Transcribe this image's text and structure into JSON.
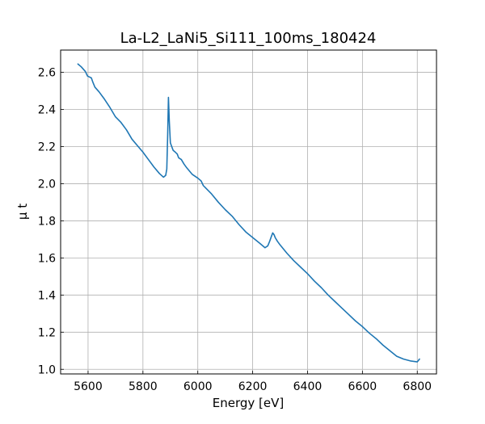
{
  "chart_data": {
    "type": "line",
    "title": "La-L2_LaNi5_Si111_100ms_180424",
    "xlabel": "Energy [eV]",
    "ylabel": "μ t",
    "xlim": [
      5500,
      6870
    ],
    "ylim": [
      0.975,
      2.72
    ],
    "grid": true,
    "legend": "none",
    "x_ticks": [
      5600,
      5800,
      6000,
      6200,
      6400,
      6600,
      6800
    ],
    "x_tick_labels": [
      "5600",
      "5800",
      "6000",
      "6200",
      "6400",
      "6600",
      "6800"
    ],
    "y_ticks": [
      1.0,
      1.2,
      1.4,
      1.6,
      1.8,
      2.0,
      2.2,
      2.4,
      2.6
    ],
    "y_tick_labels": [
      "1.0",
      "1.2",
      "1.4",
      "1.6",
      "1.8",
      "2.0",
      "2.2",
      "2.4",
      "2.6"
    ],
    "series": [
      {
        "color": "#1f77b4",
        "x": [
          5563,
          5575,
          5590,
          5598,
          5605,
          5612,
          5618,
          5625,
          5640,
          5660,
          5680,
          5700,
          5720,
          5740,
          5760,
          5780,
          5800,
          5820,
          5840,
          5860,
          5875,
          5883,
          5887,
          5890,
          5893,
          5896,
          5900,
          5905,
          5910,
          5918,
          5925,
          5930,
          5940,
          5950,
          5960,
          5980,
          6000,
          6012,
          6020,
          6030,
          6050,
          6075,
          6100,
          6125,
          6150,
          6175,
          6200,
          6225,
          6245,
          6255,
          6262,
          6268,
          6273,
          6278,
          6282,
          6290,
          6300,
          6325,
          6350,
          6375,
          6400,
          6425,
          6450,
          6475,
          6500,
          6525,
          6550,
          6575,
          6600,
          6625,
          6650,
          6675,
          6700,
          6725,
          6750,
          6775,
          6800,
          6808
        ],
        "y": [
          2.645,
          2.63,
          2.605,
          2.58,
          2.575,
          2.57,
          2.545,
          2.52,
          2.495,
          2.455,
          2.41,
          2.36,
          2.33,
          2.29,
          2.24,
          2.205,
          2.17,
          2.13,
          2.09,
          2.055,
          2.035,
          2.045,
          2.08,
          2.25,
          2.465,
          2.34,
          2.22,
          2.2,
          2.18,
          2.17,
          2.16,
          2.14,
          2.13,
          2.105,
          2.085,
          2.05,
          2.03,
          2.015,
          1.99,
          1.975,
          1.945,
          1.9,
          1.86,
          1.825,
          1.78,
          1.74,
          1.71,
          1.68,
          1.655,
          1.665,
          1.69,
          1.715,
          1.735,
          1.725,
          1.71,
          1.69,
          1.67,
          1.625,
          1.585,
          1.55,
          1.515,
          1.475,
          1.44,
          1.4,
          1.365,
          1.33,
          1.295,
          1.26,
          1.23,
          1.195,
          1.165,
          1.13,
          1.1,
          1.07,
          1.055,
          1.045,
          1.04,
          1.055
        ]
      }
    ]
  }
}
